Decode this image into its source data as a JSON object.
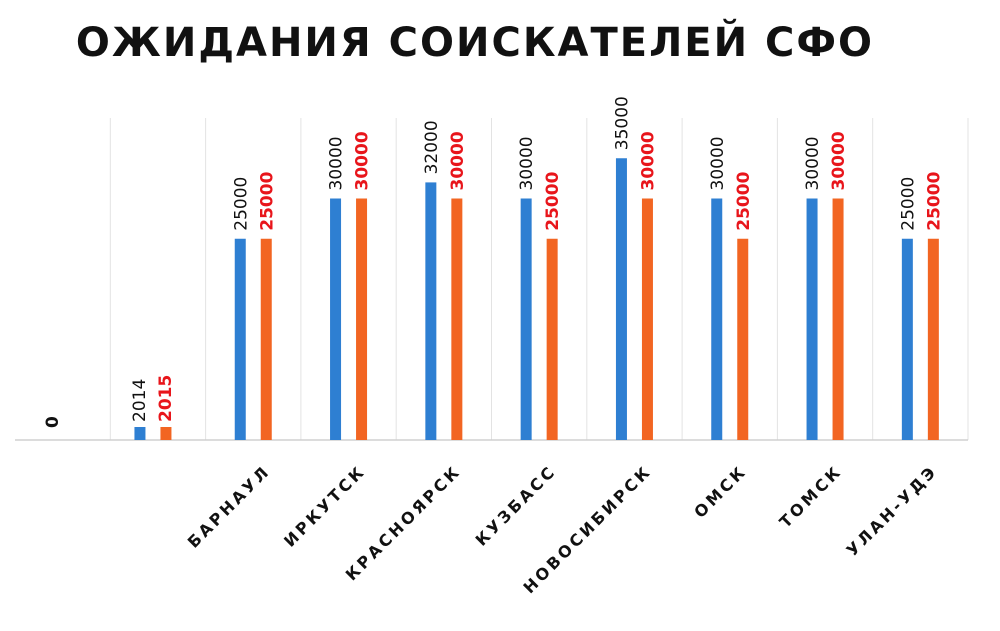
{
  "chart_data": {
    "type": "bar",
    "title": "ОЖИДАНИЯ  СОИСКАТЕЛЕЙ  СФО",
    "categories": [
      "БАРНАУЛ",
      "ИРКУТСК",
      "КРАСНОЯРСК",
      "КУЗБАСС",
      "НОВОСИБИРСК",
      "ОМСК",
      "ТОМСК",
      "УЛАН-УДЭ"
    ],
    "series": [
      {
        "name": "2014",
        "color": "#2e7fd2",
        "label_color": "#111111",
        "values": [
          25000,
          30000,
          32000,
          30000,
          35000,
          30000,
          30000,
          25000
        ]
      },
      {
        "name": "2015",
        "color": "#f26522",
        "label_color": "#e8151b",
        "values": [
          25000,
          30000,
          30000,
          25000,
          30000,
          25000,
          30000,
          25000
        ]
      }
    ],
    "zero_label": "0",
    "ylim": [
      0,
      40000
    ],
    "legend_position": "inline-left",
    "grid": "vertical-category-separators"
  }
}
